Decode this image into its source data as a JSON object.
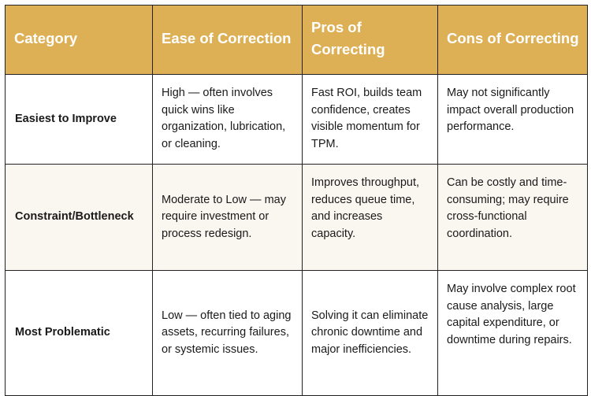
{
  "table": {
    "headers": [
      "Category",
      "Ease of Correction",
      "Pros of Correcting",
      "Cons of Correcting"
    ],
    "rows": [
      {
        "category": "Easiest to Improve",
        "ease": "High — often involves quick wins like organization, lubrication, or cleaning.",
        "pros": "Fast ROI, builds team confidence, creates visible momentum for TPM.",
        "cons": "May not significantly impact overall production performance."
      },
      {
        "category": "Constraint/Bottleneck",
        "ease": "Moderate to Low — may require investment or process redesign.",
        "pros": "Improves throughput, reduces queue time, and increases capacity.",
        "cons": "Can be costly and time-consuming; may require cross-functional coordination."
      },
      {
        "category": "Most Problematic",
        "ease": "Low — often tied to aging assets, recurring failures, or systemic issues.",
        "pros": "Solving it can eliminate chronic downtime and major inefficiencies.",
        "cons": "May involve complex root cause analysis, large capital expenditure, or downtime during repairs."
      }
    ],
    "colors": {
      "header_bg": "#deb055",
      "header_text": "#ffffff",
      "alt_row_bg": "#faf6f0",
      "border": "#222222"
    }
  }
}
